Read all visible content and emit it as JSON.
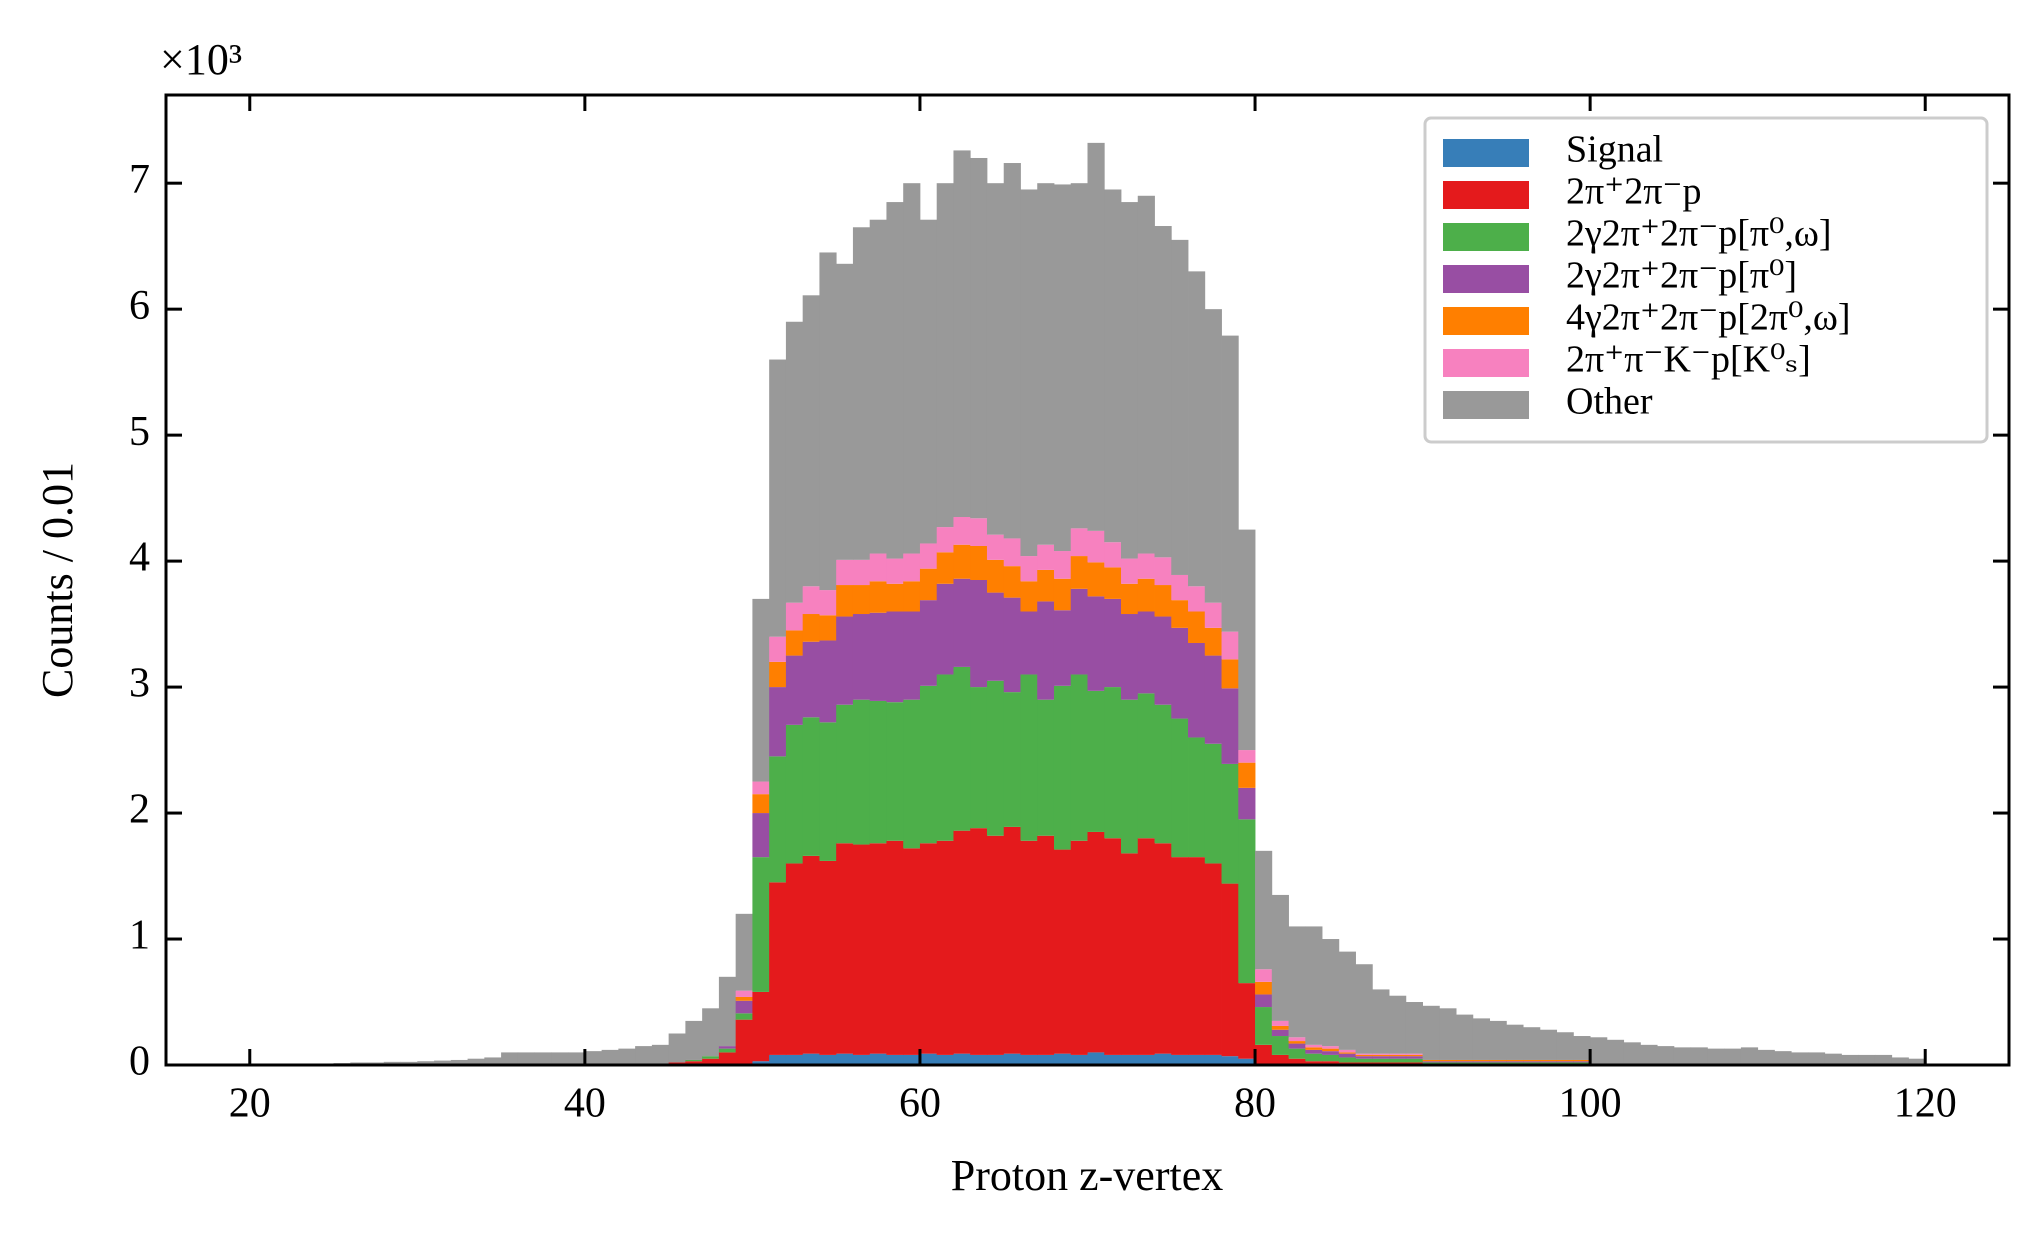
{
  "chart_data": {
    "type": "stacked_histogram",
    "x_label": "Proton z-vertex",
    "y_label": "Counts / 0.01",
    "y_offset_label": "×10³",
    "bins": [
      20,
      21,
      22,
      23,
      24,
      25,
      26,
      27,
      28,
      29,
      30,
      31,
      32,
      33,
      34,
      35,
      36,
      37,
      38,
      39,
      40,
      41,
      42,
      43,
      44,
      45,
      46,
      47,
      48,
      49,
      50,
      51,
      52,
      53,
      54,
      55,
      56,
      57,
      58,
      59,
      60,
      61,
      62,
      63,
      64,
      65,
      66,
      67,
      68,
      69,
      70,
      71,
      72,
      73,
      74,
      75,
      76,
      77,
      78,
      79,
      80,
      81,
      82,
      83,
      84,
      85,
      86,
      87,
      88,
      89,
      90,
      91,
      92,
      93,
      94,
      95,
      96,
      97,
      98,
      99,
      100,
      101,
      102,
      103,
      104,
      105,
      106,
      107,
      108,
      109,
      110,
      111,
      112,
      113,
      114,
      115,
      116,
      117,
      118,
      119,
      120
    ],
    "xlim": [
      15,
      125
    ],
    "xticks": [
      20,
      40,
      60,
      80,
      100,
      120
    ],
    "ylim": [
      0,
      7.7
    ],
    "yticks": [
      0,
      1,
      2,
      3,
      4,
      5,
      6,
      7
    ],
    "legend": "upper right",
    "series": [
      {
        "name": "Signal",
        "color": "#377eb8",
        "values": [
          0,
          0,
          0,
          0,
          0,
          0,
          0,
          0,
          0,
          0,
          0,
          0,
          0,
          0,
          0,
          0,
          0,
          0,
          0,
          0,
          0,
          0,
          0,
          0,
          0,
          0,
          0,
          0,
          0,
          0.01,
          0.03,
          0.08,
          0.08,
          0.09,
          0.08,
          0.09,
          0.08,
          0.09,
          0.08,
          0.08,
          0.09,
          0.08,
          0.09,
          0.08,
          0.08,
          0.09,
          0.08,
          0.08,
          0.09,
          0.08,
          0.1,
          0.08,
          0.08,
          0.08,
          0.09,
          0.08,
          0.08,
          0.08,
          0.07,
          0.05,
          0.01,
          0,
          0,
          0,
          0,
          0,
          0,
          0,
          0,
          0,
          0,
          0,
          0,
          0,
          0,
          0,
          0,
          0,
          0,
          0,
          0,
          0,
          0,
          0,
          0,
          0,
          0,
          0,
          0,
          0,
          0,
          0,
          0,
          0,
          0,
          0,
          0,
          0,
          0,
          0
        ]
      },
      {
        "name": "2π⁺2π⁻p",
        "color": "#e41a1c",
        "values": [
          0,
          0,
          0,
          0,
          0,
          0,
          0,
          0,
          0,
          0,
          0,
          0,
          0,
          0,
          0,
          0,
          0,
          0,
          0,
          0,
          0.01,
          0.01,
          0.01,
          0.01,
          0.01,
          0.02,
          0.03,
          0.05,
          0.1,
          0.35,
          0.55,
          1.37,
          1.52,
          1.57,
          1.54,
          1.67,
          1.67,
          1.67,
          1.7,
          1.64,
          1.67,
          1.7,
          1.77,
          1.8,
          1.74,
          1.8,
          1.7,
          1.74,
          1.62,
          1.7,
          1.75,
          1.72,
          1.6,
          1.72,
          1.67,
          1.57,
          1.57,
          1.52,
          1.37,
          0.6,
          0.15,
          0.08,
          0.05,
          0.03,
          0.03,
          0.02,
          0.02,
          0.02,
          0.02,
          0.02,
          0.01,
          0.01,
          0.01,
          0.01,
          0.01,
          0.01,
          0.01,
          0.01,
          0.01,
          0.01,
          0,
          0,
          0,
          0,
          0,
          0,
          0,
          0,
          0,
          0,
          0,
          0,
          0,
          0,
          0,
          0,
          0,
          0,
          0,
          0
        ]
      },
      {
        "name": "2γ2π⁺2π⁻p[π⁰,ω]",
        "color": "#4daf4a",
        "values": [
          0,
          0,
          0,
          0,
          0,
          0,
          0,
          0,
          0,
          0,
          0,
          0,
          0,
          0,
          0,
          0,
          0,
          0,
          0,
          0,
          0,
          0,
          0,
          0,
          0,
          0,
          0.01,
          0.02,
          0.03,
          0.05,
          1.07,
          1.0,
          1.1,
          1.1,
          1.1,
          1.1,
          1.15,
          1.13,
          1.1,
          1.18,
          1.25,
          1.32,
          1.3,
          1.12,
          1.23,
          1.07,
          1.32,
          1.08,
          1.3,
          1.32,
          1.12,
          1.2,
          1.22,
          1.15,
          1.1,
          1.1,
          0.95,
          0.95,
          0.95,
          1.3,
          0.3,
          0.15,
          0.08,
          0.06,
          0.05,
          0.04,
          0.03,
          0.03,
          0.03,
          0.03,
          0.01,
          0.01,
          0.01,
          0.01,
          0.01,
          0.01,
          0.01,
          0.01,
          0.01,
          0.01,
          0,
          0,
          0,
          0,
          0,
          0,
          0,
          0,
          0,
          0,
          0,
          0,
          0,
          0,
          0,
          0,
          0,
          0,
          0,
          0
        ]
      },
      {
        "name": "2γ2π⁺2π⁻p[π⁰]",
        "color": "#984ea3",
        "values": [
          0,
          0,
          0,
          0,
          0,
          0,
          0,
          0,
          0,
          0,
          0,
          0,
          0,
          0,
          0,
          0,
          0,
          0,
          0,
          0,
          0,
          0,
          0,
          0,
          0,
          0,
          0,
          0,
          0.02,
          0.1,
          0.35,
          0.55,
          0.55,
          0.6,
          0.65,
          0.7,
          0.68,
          0.7,
          0.72,
          0.7,
          0.68,
          0.72,
          0.7,
          0.85,
          0.7,
          0.75,
          0.5,
          0.78,
          0.6,
          0.68,
          0.75,
          0.7,
          0.68,
          0.65,
          0.7,
          0.72,
          0.75,
          0.7,
          0.6,
          0.25,
          0.1,
          0.05,
          0.04,
          0.03,
          0.03,
          0.03,
          0.02,
          0.02,
          0.02,
          0.02,
          0.01,
          0.01,
          0.01,
          0.01,
          0.01,
          0.01,
          0.01,
          0.01,
          0.01,
          0.01,
          0,
          0,
          0,
          0,
          0,
          0,
          0,
          0,
          0,
          0,
          0,
          0,
          0,
          0,
          0,
          0,
          0,
          0,
          0,
          0
        ]
      },
      {
        "name": "4γ2π⁺2π⁻p[2π⁰,ω]",
        "color": "#ff7f00",
        "values": [
          0,
          0,
          0,
          0,
          0,
          0,
          0,
          0,
          0,
          0,
          0,
          0,
          0,
          0,
          0,
          0,
          0,
          0,
          0,
          0,
          0,
          0,
          0,
          0,
          0,
          0,
          0,
          0,
          0,
          0.03,
          0.15,
          0.2,
          0.2,
          0.22,
          0.2,
          0.25,
          0.23,
          0.25,
          0.22,
          0.24,
          0.25,
          0.25,
          0.27,
          0.27,
          0.26,
          0.25,
          0.24,
          0.25,
          0.25,
          0.26,
          0.27,
          0.25,
          0.24,
          0.26,
          0.25,
          0.22,
          0.25,
          0.22,
          0.23,
          0.2,
          0.1,
          0.03,
          0.02,
          0.02,
          0.02,
          0.01,
          0.01,
          0.01,
          0.01,
          0.01,
          0.01,
          0.01,
          0.01,
          0.01,
          0.01,
          0.01,
          0.01,
          0.01,
          0.01,
          0.01,
          0,
          0,
          0,
          0,
          0,
          0,
          0,
          0,
          0,
          0,
          0,
          0,
          0,
          0,
          0,
          0,
          0,
          0,
          0,
          0
        ]
      },
      {
        "name": "2π⁺π⁻K⁻p[K⁰ₛ]",
        "color": "#f781bf",
        "values": [
          0,
          0,
          0,
          0,
          0,
          0,
          0,
          0,
          0,
          0,
          0,
          0,
          0,
          0,
          0,
          0,
          0,
          0,
          0,
          0,
          0,
          0,
          0,
          0,
          0,
          0,
          0,
          0,
          0,
          0.05,
          0.1,
          0.2,
          0.22,
          0.22,
          0.2,
          0.2,
          0.2,
          0.22,
          0.2,
          0.22,
          0.2,
          0.2,
          0.22,
          0.22,
          0.2,
          0.22,
          0.2,
          0.2,
          0.22,
          0.22,
          0.25,
          0.2,
          0.2,
          0.2,
          0.22,
          0.2,
          0.2,
          0.2,
          0.22,
          0.1,
          0.1,
          0.04,
          0.03,
          0.02,
          0.02,
          0.02,
          0.01,
          0.01,
          0.01,
          0.01,
          0,
          0,
          0,
          0,
          0,
          0,
          0,
          0,
          0,
          0,
          0,
          0,
          0,
          0,
          0,
          0,
          0,
          0,
          0,
          0,
          0,
          0,
          0,
          0,
          0,
          0,
          0,
          0,
          0,
          0
        ]
      },
      {
        "name": "Other",
        "color": "#999999",
        "values": [
          0.005,
          0.005,
          0.01,
          0.01,
          0.01,
          0.015,
          0.02,
          0.02,
          0.025,
          0.025,
          0.03,
          0.035,
          0.04,
          0.05,
          0.06,
          0.1,
          0.1,
          0.1,
          0.1,
          0.1,
          0.1,
          0.11,
          0.12,
          0.14,
          0.15,
          0.23,
          0.31,
          0.38,
          0.55,
          0.61,
          1.45,
          2.2,
          2.23,
          2.31,
          2.68,
          2.35,
          2.64,
          2.65,
          2.83,
          2.94,
          2.57,
          2.73,
          2.91,
          2.86,
          2.79,
          2.98,
          2.91,
          2.87,
          2.91,
          2.74,
          3.08,
          2.8,
          2.83,
          2.84,
          2.63,
          2.66,
          2.5,
          2.33,
          2.35,
          1.75,
          0.94,
          1.0,
          0.88,
          0.94,
          0.85,
          0.78,
          0.71,
          0.51,
          0.46,
          0.41,
          0.43,
          0.41,
          0.36,
          0.33,
          0.31,
          0.28,
          0.26,
          0.24,
          0.22,
          0.19,
          0.22,
          0.2,
          0.18,
          0.16,
          0.15,
          0.14,
          0.14,
          0.13,
          0.13,
          0.14,
          0.12,
          0.11,
          0.1,
          0.1,
          0.09,
          0.08,
          0.08,
          0.08,
          0.06,
          0.05
        ]
      }
    ]
  }
}
